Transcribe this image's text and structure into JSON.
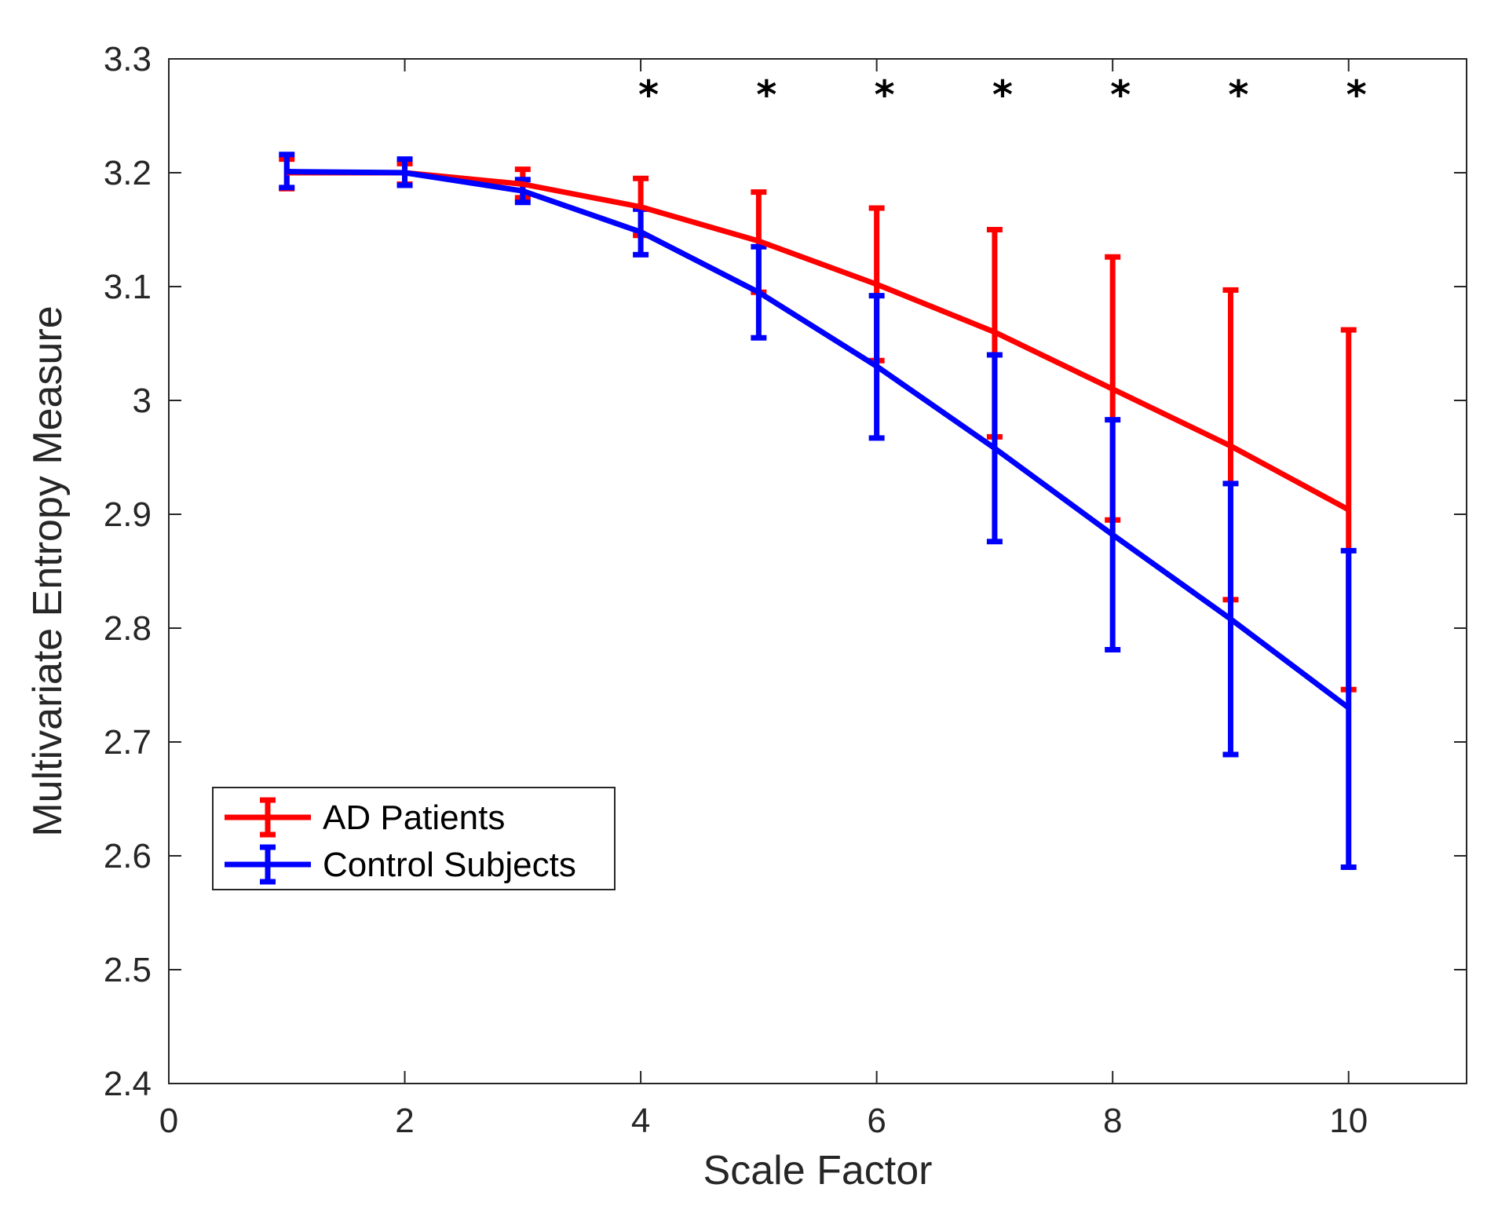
{
  "chart_data": {
    "type": "line",
    "title": "",
    "xlabel": "Scale Factor",
    "ylabel": "Multivariate Entropy Measure",
    "xlim": [
      0,
      11
    ],
    "ylim": [
      2.4,
      3.3
    ],
    "xticks": [
      0,
      2,
      4,
      6,
      8,
      10
    ],
    "xtick_labels": [
      "0",
      "2",
      "4",
      "6",
      "8",
      "10"
    ],
    "yticks": [
      2.4,
      2.5,
      2.6,
      2.7,
      2.8,
      2.9,
      3.0,
      3.1,
      3.2,
      3.3
    ],
    "ytick_labels": [
      "2.4",
      "2.5",
      "2.6",
      "2.7",
      "2.8",
      "2.9",
      "3",
      "3.1",
      "3.2",
      "3.3"
    ],
    "grid": false,
    "legend_position": "lower-left",
    "x": [
      1,
      2,
      3,
      4,
      5,
      6,
      7,
      8,
      9,
      10
    ],
    "series": [
      {
        "name": "AD Patients",
        "color": "#ff0000",
        "values": [
          3.2,
          3.2,
          3.19,
          3.17,
          3.14,
          3.102,
          3.06,
          3.01,
          2.96,
          2.904
        ],
        "lower": [
          3.186,
          3.19,
          3.178,
          3.145,
          3.095,
          3.035,
          2.968,
          2.895,
          2.825,
          2.746
        ],
        "upper": [
          3.212,
          3.208,
          3.203,
          3.195,
          3.183,
          3.169,
          3.15,
          3.126,
          3.097,
          3.062
        ]
      },
      {
        "name": "Control Subjects",
        "color": "#0000ff",
        "values": [
          3.201,
          3.2,
          3.184,
          3.148,
          3.095,
          3.03,
          2.958,
          2.882,
          2.808,
          2.73
        ],
        "lower": [
          3.187,
          3.189,
          3.174,
          3.128,
          3.055,
          2.967,
          2.876,
          2.781,
          2.689,
          2.59
        ],
        "upper": [
          3.216,
          3.212,
          3.194,
          3.168,
          3.135,
          3.092,
          3.04,
          2.983,
          2.927,
          2.868
        ]
      }
    ],
    "significance": {
      "label": "*",
      "x": [
        4,
        5,
        6,
        7,
        8,
        9,
        10
      ]
    }
  }
}
